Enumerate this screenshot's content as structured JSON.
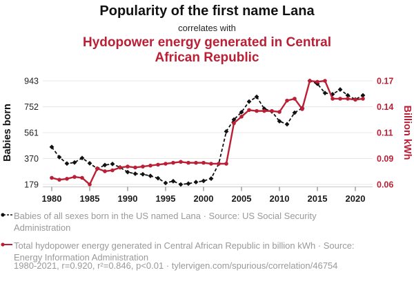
{
  "header": {
    "title": "Popularity of the first name Lana",
    "connector": "correlates with",
    "subtitle": "Hydopower energy generated in Central African Republic"
  },
  "colors": {
    "accent_red": "#bb1f35",
    "series_black": "#111111",
    "grid": "#e7e7e7",
    "axis_line": "#c9c9c9",
    "tick_text": "#222222",
    "legend_gray": "#999999"
  },
  "chart_data": {
    "type": "line",
    "title": "Popularity of the first name Lana correlates with Hydopower energy generated in Central African Republic",
    "x": [
      1980,
      1981,
      1982,
      1983,
      1984,
      1985,
      1986,
      1987,
      1988,
      1989,
      1990,
      1991,
      1992,
      1993,
      1994,
      1995,
      1996,
      1997,
      1998,
      1999,
      2000,
      2001,
      2002,
      2003,
      2004,
      2005,
      2006,
      2007,
      2008,
      2009,
      2010,
      2011,
      2012,
      2013,
      2014,
      2015,
      2016,
      2017,
      2018,
      2019,
      2020,
      2021
    ],
    "series": [
      {
        "name": "Babies of all sexes born in the US named Lana",
        "axis": "left",
        "style": "dashed-diamond",
        "values": [
          455,
          380,
          333,
          341,
          374,
          335,
          295,
          322,
          330,
          305,
          270,
          258,
          254,
          242,
          225,
          190,
          203,
          179,
          185,
          196,
          205,
          222,
          331,
          570,
          657,
          712,
          790,
          825,
          737,
          717,
          645,
          623,
          708,
          742,
          943,
          921,
          853,
          844,
          879,
          836,
          806,
          836
        ]
      },
      {
        "name": "Total hydopower energy generated in Central African Republic",
        "axis": "right",
        "style": "solid-circle",
        "values": [
          0.067,
          0.065,
          0.066,
          0.068,
          0.067,
          0.06,
          0.077,
          0.074,
          0.075,
          0.078,
          0.079,
          0.078,
          0.079,
          0.08,
          0.081,
          0.082,
          0.083,
          0.084,
          0.083,
          0.083,
          0.083,
          0.082,
          0.082,
          0.082,
          0.125,
          0.132,
          0.139,
          0.138,
          0.138,
          0.138,
          0.137,
          0.149,
          0.151,
          0.14,
          0.17,
          0.169,
          0.17,
          0.151,
          0.151,
          0.151,
          0.15,
          0.151
        ]
      }
    ],
    "left_axis": {
      "label": "Babies born",
      "range": [
        179,
        943
      ],
      "tick_labels": [
        "179",
        "370",
        "561",
        "752",
        "943"
      ]
    },
    "right_axis": {
      "label": "Billion kWh",
      "range": [
        0.06,
        0.17
      ],
      "tick_labels": [
        "0.06",
        "0.09",
        "0.11",
        "0.14",
        "0.17"
      ]
    },
    "x_axis": {
      "range": [
        1980,
        2021
      ],
      "tick_years": [
        1980,
        1985,
        1990,
        1995,
        2000,
        2005,
        2010,
        2015,
        2020
      ]
    },
    "grid": true,
    "legend_position": "bottom"
  },
  "legend": {
    "items": [
      {
        "label": "Babies of all sexes born in the US named Lana · Source: US Social Security Administration"
      },
      {
        "label": "Total hydopower energy generated in Central African Republic in billion kWh · Source: Energy Information Administration"
      }
    ]
  },
  "footer": {
    "stats": "1980-2021, r=0.920, r²=0.846, p<0.01 · tylervigen.com/spurious/correlation/46754"
  }
}
